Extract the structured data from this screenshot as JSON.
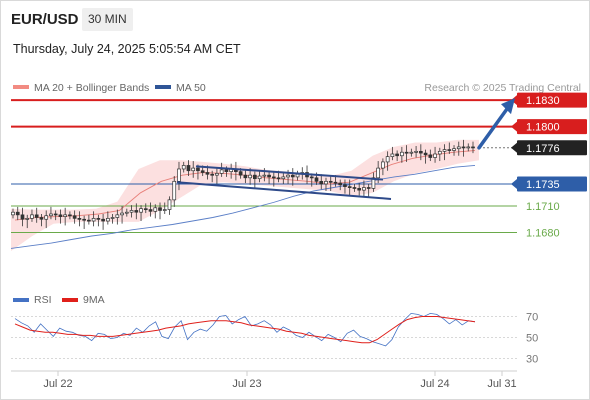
{
  "header": {
    "symbol": "EUR/USD",
    "timeframe": "30 MIN",
    "datetime": "Thursday, July 24, 2025 5:05:54 AM CET"
  },
  "legend": {
    "ma20": {
      "label": "MA 20 + Bollinger Bands",
      "color": "#f28b82"
    },
    "ma50": {
      "label": "MA 50",
      "color": "#2f5597"
    },
    "credit": "Research © 2025 Trading Central"
  },
  "rsi_legend": {
    "rsi": {
      "label": "RSI",
      "color": "#4472c4"
    },
    "ma9": {
      "label": "9MA",
      "color": "#e0201b"
    }
  },
  "colors": {
    "resistance": "#d81e1e",
    "current": "#222222",
    "pivot": "#2e5ea8",
    "support": "#6aaa4a",
    "candle": "#333333",
    "band_fill": "#fcdada",
    "arrow": "#2e5ea8"
  },
  "chart_data": [
    {
      "type": "candlestick",
      "instrument": "EUR/USD",
      "interval": "30 MIN",
      "ylim": [
        1.1625,
        1.1837
      ],
      "x_ticks": [
        "Jul 22",
        "Jul 23",
        "Jul 24",
        "Jul 31"
      ],
      "levels": [
        {
          "name": "resistance_2",
          "value": 1.183,
          "label": "1.1830"
        },
        {
          "name": "resistance_1",
          "value": 1.18,
          "label": "1.1800"
        },
        {
          "name": "last_price",
          "value": 1.1776,
          "label": "1.1776"
        },
        {
          "name": "pivot",
          "value": 1.1735,
          "label": "1.1735"
        },
        {
          "name": "support_1",
          "value": 1.171,
          "label": "1.1710"
        },
        {
          "name": "support_2",
          "value": 1.168,
          "label": "1.1680"
        }
      ],
      "close_series": [
        1.1703,
        1.17,
        1.1695,
        1.1696,
        1.17,
        1.1697,
        1.1695,
        1.1699,
        1.1701,
        1.17,
        1.1698,
        1.17,
        1.1699,
        1.1696,
        1.1695,
        1.1694,
        1.1693,
        1.1696,
        1.1695,
        1.1693,
        1.1696,
        1.1697,
        1.17,
        1.1702,
        1.1703,
        1.1705,
        1.1703,
        1.1707,
        1.1706,
        1.1704,
        1.1708,
        1.1705,
        1.1706,
        1.1717,
        1.1738,
        1.1752,
        1.1756,
        1.175,
        1.1753,
        1.175,
        1.1748,
        1.1746,
        1.1745,
        1.1747,
        1.1751,
        1.1749,
        1.1752,
        1.1749,
        1.1745,
        1.1742,
        1.1745,
        1.1741,
        1.1744,
        1.1745,
        1.1743,
        1.1742,
        1.1741,
        1.1743,
        1.1745,
        1.1743,
        1.1746,
        1.1748,
        1.1743,
        1.1742,
        1.1738,
        1.1735,
        1.1738,
        1.1737,
        1.1736,
        1.1734,
        1.1732,
        1.1731,
        1.173,
        1.1728,
        1.1731,
        1.173,
        1.1742,
        1.1753,
        1.176,
        1.1766,
        1.1769,
        1.1767,
        1.1771,
        1.177,
        1.1771,
        1.1772,
        1.177,
        1.1768,
        1.1765,
        1.1769,
        1.1772,
        1.1774,
        1.1773,
        1.1775,
        1.1777,
        1.1776,
        1.1777,
        1.1776
      ],
      "overlays": {
        "ma50": [
          1.1662,
          1.1665,
          1.1668,
          1.1672,
          1.1676,
          1.1679,
          1.1683,
          1.1686,
          1.1689,
          1.1693,
          1.1697,
          1.1702,
          1.1708,
          1.1714,
          1.1721,
          1.1727,
          1.1731,
          1.1735,
          1.1739,
          1.1743,
          1.1746,
          1.175,
          1.1754,
          1.1756
        ],
        "ma20": [
          1.1694,
          1.1697,
          1.1698,
          1.1699,
          1.1701,
          1.1705,
          1.1725,
          1.1738,
          1.1745,
          1.1748,
          1.1747,
          1.1745,
          1.1742,
          1.174,
          1.1738,
          1.1735,
          1.1737,
          1.1747,
          1.1757,
          1.1764,
          1.1768,
          1.1771,
          1.1773
        ],
        "bollinger_upper": [
          1.1707,
          1.1706,
          1.1706,
          1.1706,
          1.1707,
          1.1715,
          1.1752,
          1.1762,
          1.1762,
          1.176,
          1.1758,
          1.1755,
          1.1751,
          1.1749,
          1.1746,
          1.1744,
          1.175,
          1.1767,
          1.1777,
          1.1782,
          1.1782,
          1.1785,
          1.1785
        ],
        "bollinger_lower": [
          1.1659,
          1.1676,
          1.169,
          1.1692,
          1.1692,
          1.1692,
          1.1692,
          1.1705,
          1.172,
          1.1735,
          1.1737,
          1.1735,
          1.1733,
          1.1731,
          1.1729,
          1.1727,
          1.1721,
          1.1725,
          1.1738,
          1.1747,
          1.1752,
          1.1758,
          1.1762
        ]
      },
      "channel": {
        "upper": [
          [
            1.1755,
            0.31
          ],
          [
            1.174,
            0.7
          ]
        ],
        "lower": [
          [
            1.1737,
            0.28
          ],
          [
            1.1718,
            0.7
          ]
        ]
      },
      "projection": {
        "from": 1.1776,
        "to": 1.183
      }
    },
    {
      "type": "line",
      "title": "RSI",
      "ylim": [
        20,
        80
      ],
      "y_ticks": [
        70,
        50,
        30
      ],
      "series": [
        {
          "name": "RSI",
          "values": [
            68,
            64,
            61,
            55,
            63,
            57,
            51,
            59,
            56,
            55,
            52,
            51,
            47,
            54,
            53,
            49,
            50,
            54,
            52,
            59,
            55,
            61,
            65,
            51,
            49,
            60,
            66,
            48,
            55,
            58,
            56,
            62,
            70,
            71,
            63,
            67,
            70,
            61,
            63,
            66,
            62,
            55,
            60,
            57,
            52,
            50,
            55,
            51,
            47,
            53,
            50,
            46,
            54,
            57,
            51,
            49,
            46,
            44,
            42,
            48,
            60,
            67,
            73,
            72,
            70,
            73,
            72,
            68,
            63,
            67,
            62,
            66,
            65
          ]
        },
        {
          "name": "9MA",
          "values": [
            63,
            60,
            57,
            56,
            55,
            55,
            54,
            53,
            53,
            52,
            52,
            51,
            51,
            51,
            52,
            53,
            54,
            55,
            56,
            57,
            59,
            60,
            61,
            63,
            64,
            65,
            66,
            66,
            66,
            65,
            64,
            62,
            61,
            60,
            59,
            58,
            56,
            55,
            54,
            52,
            51,
            50,
            49,
            48,
            47,
            46,
            45,
            45,
            48,
            53,
            58,
            63,
            67,
            69,
            70,
            70,
            70,
            69,
            68,
            67,
            66,
            65
          ]
        }
      ]
    }
  ]
}
